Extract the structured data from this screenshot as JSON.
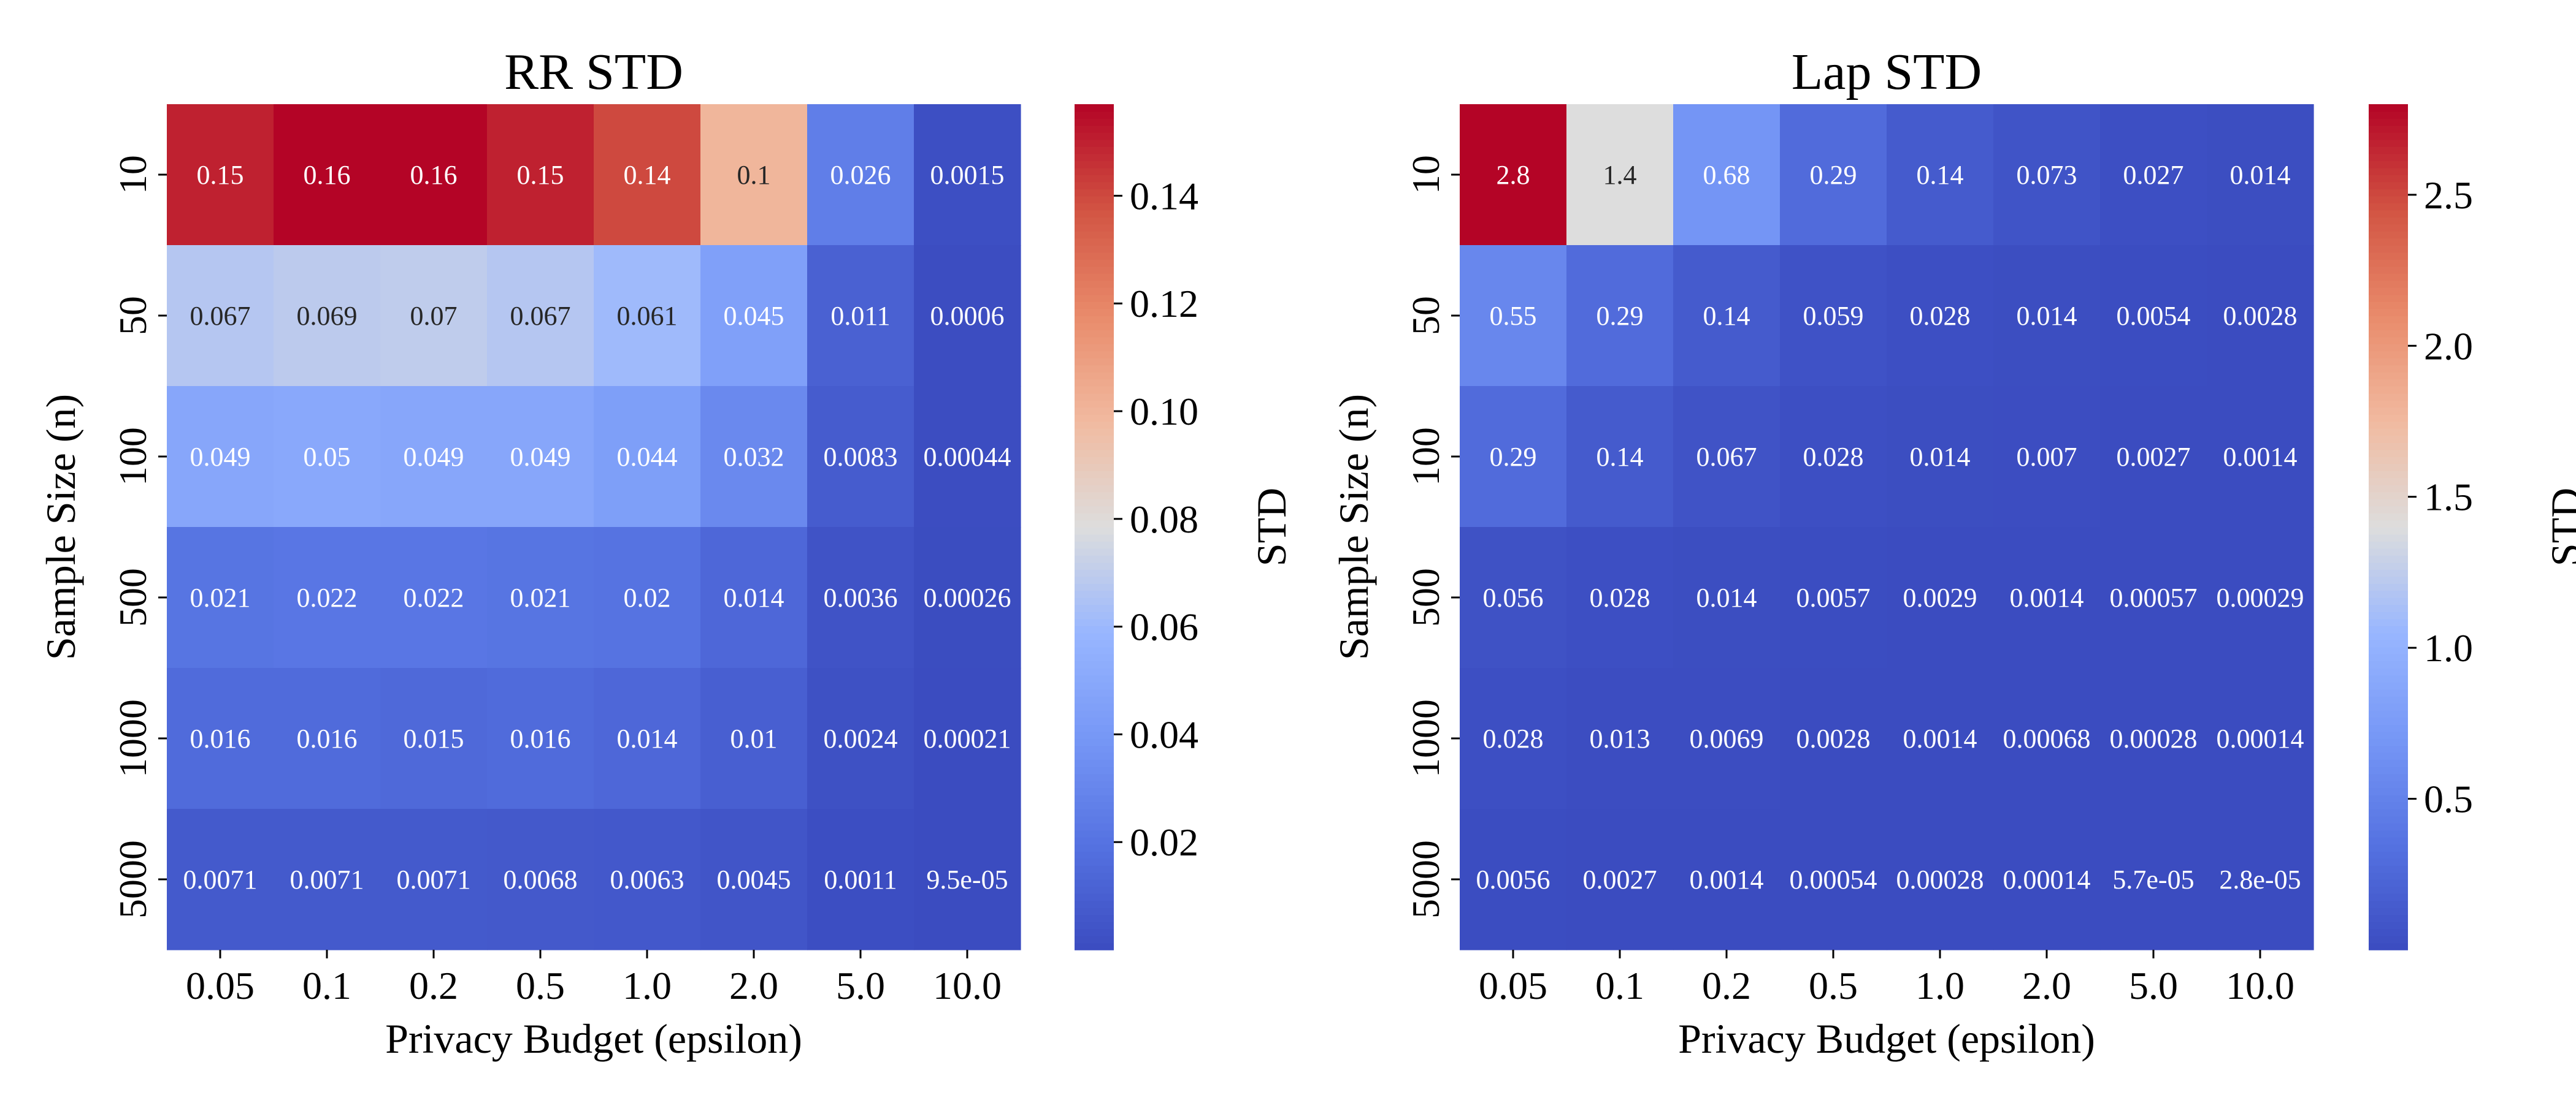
{
  "chart_data": [
    {
      "type": "heatmap",
      "title": "RR STD",
      "xlabel": "Privacy Budget (epsilon)",
      "ylabel": "Sample Size (n)",
      "x_categories": [
        "0.05",
        "0.1",
        "0.2",
        "0.5",
        "1.0",
        "2.0",
        "5.0",
        "10.0"
      ],
      "y_categories": [
        "10",
        "50",
        "100",
        "500",
        "1000",
        "5000"
      ],
      "values": [
        [
          0.15,
          0.16,
          0.16,
          0.15,
          0.14,
          0.1,
          0.026,
          0.0015
        ],
        [
          0.067,
          0.069,
          0.07,
          0.067,
          0.061,
          0.045,
          0.011,
          0.0006
        ],
        [
          0.049,
          0.05,
          0.049,
          0.049,
          0.044,
          0.032,
          0.0083,
          0.00044
        ],
        [
          0.021,
          0.022,
          0.022,
          0.021,
          0.02,
          0.014,
          0.0036,
          0.00026
        ],
        [
          0.016,
          0.016,
          0.015,
          0.016,
          0.014,
          0.01,
          0.0024,
          0.00021
        ],
        [
          0.0071,
          0.0071,
          0.0071,
          0.0068,
          0.0063,
          0.0045,
          0.0011,
          9.5e-05
        ]
      ],
      "annotations": [
        [
          "0.15",
          "0.16",
          "0.16",
          "0.15",
          "0.14",
          "0.1",
          "0.026",
          "0.0015"
        ],
        [
          "0.067",
          "0.069",
          "0.07",
          "0.067",
          "0.061",
          "0.045",
          "0.011",
          "0.0006"
        ],
        [
          "0.049",
          "0.05",
          "0.049",
          "0.049",
          "0.044",
          "0.032",
          "0.0083",
          "0.00044"
        ],
        [
          "0.021",
          "0.022",
          "0.022",
          "0.021",
          "0.02",
          "0.014",
          "0.0036",
          "0.00026"
        ],
        [
          "0.016",
          "0.016",
          "0.015",
          "0.016",
          "0.014",
          "0.01",
          "0.0024",
          "0.00021"
        ],
        [
          "0.0071",
          "0.0071",
          "0.0071",
          "0.0068",
          "0.0063",
          "0.0045",
          "0.0011",
          "9.5e-05"
        ]
      ],
      "colorbar": {
        "label": "STD",
        "range": [
          0.0,
          0.157
        ],
        "ticks": [
          0.02,
          0.04,
          0.06,
          0.08,
          0.1,
          0.12,
          0.14
        ],
        "tick_labels": [
          "0.02",
          "0.04",
          "0.06",
          "0.08",
          "0.10",
          "0.12",
          "0.14"
        ]
      },
      "colormap": "coolwarm"
    },
    {
      "type": "heatmap",
      "title": "Lap STD",
      "xlabel": "Privacy Budget (epsilon)",
      "ylabel": "Sample Size (n)",
      "x_categories": [
        "0.05",
        "0.1",
        "0.2",
        "0.5",
        "1.0",
        "2.0",
        "5.0",
        "10.0"
      ],
      "y_categories": [
        "10",
        "50",
        "100",
        "500",
        "1000",
        "5000"
      ],
      "values": [
        [
          2.8,
          1.4,
          0.68,
          0.29,
          0.14,
          0.073,
          0.027,
          0.014
        ],
        [
          0.55,
          0.29,
          0.14,
          0.059,
          0.028,
          0.014,
          0.0054,
          0.0028
        ],
        [
          0.29,
          0.14,
          0.067,
          0.028,
          0.014,
          0.007,
          0.0027,
          0.0014
        ],
        [
          0.056,
          0.028,
          0.014,
          0.0057,
          0.0029,
          0.0014,
          0.00057,
          0.00029
        ],
        [
          0.028,
          0.013,
          0.0069,
          0.0028,
          0.0014,
          0.00068,
          0.00028,
          0.00014
        ],
        [
          0.0056,
          0.0027,
          0.0014,
          0.00054,
          0.00028,
          0.00014,
          5.7e-05,
          2.8e-05
        ]
      ],
      "annotations": [
        [
          "2.8",
          "1.4",
          "0.68",
          "0.29",
          "0.14",
          "0.073",
          "0.027",
          "0.014"
        ],
        [
          "0.55",
          "0.29",
          "0.14",
          "0.059",
          "0.028",
          "0.014",
          "0.0054",
          "0.0028"
        ],
        [
          "0.29",
          "0.14",
          "0.067",
          "0.028",
          "0.014",
          "0.007",
          "0.0027",
          "0.0014"
        ],
        [
          "0.056",
          "0.028",
          "0.014",
          "0.0057",
          "0.0029",
          "0.0014",
          "0.00057",
          "0.00029"
        ],
        [
          "0.028",
          "0.013",
          "0.0069",
          "0.0028",
          "0.0014",
          "0.00068",
          "0.00028",
          "0.00014"
        ],
        [
          "0.0056",
          "0.0027",
          "0.0014",
          "0.00054",
          "0.00028",
          "0.00014",
          "5.7e-05",
          "2.8e-05"
        ]
      ],
      "colorbar": {
        "label": "STD",
        "range": [
          0.0,
          2.8
        ],
        "ticks": [
          0.5,
          1.0,
          1.5,
          2.0,
          2.5
        ],
        "tick_labels": [
          "0.5",
          "1.0",
          "1.5",
          "2.0",
          "2.5"
        ]
      },
      "colormap": "coolwarm"
    }
  ]
}
